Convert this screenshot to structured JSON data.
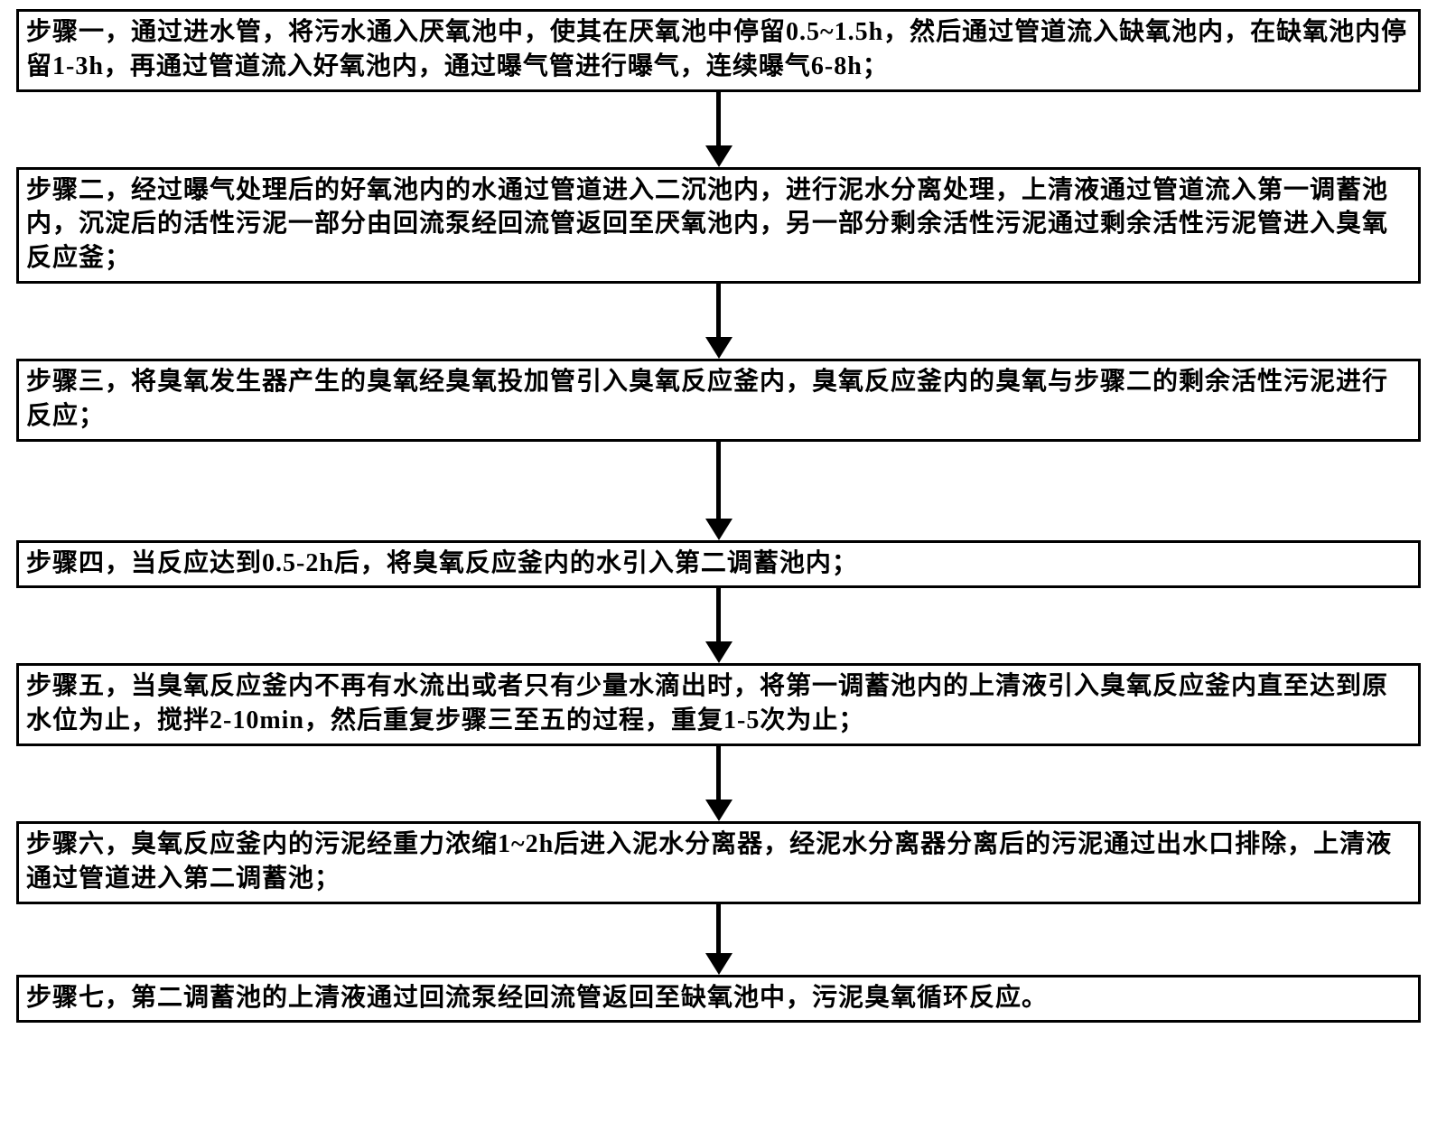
{
  "flowchart": {
    "type": "flowchart",
    "direction": "top-to-bottom",
    "background_color": "#ffffff",
    "box_border_color": "#000000",
    "box_border_width": 3,
    "text_color": "#000000",
    "font_family": "SimSun",
    "font_size_pt": 21,
    "font_weight": "bold",
    "arrow_color": "#000000",
    "arrow_shaft_width": 5,
    "arrow_head_width": 30,
    "arrow_head_height": 24,
    "steps": [
      {
        "id": "step1",
        "text": "步骤一，通过进水管，将污水通入厌氧池中，使其在厌氧池中停留0.5~1.5h，然后通过管道流入缺氧池内，在缺氧池内停留1-3h，再通过管道流入好氧池内，通过曝气管进行曝气，连续曝气6-8h；",
        "arrow_shaft_height": 60
      },
      {
        "id": "step2",
        "text": "步骤二，经过曝气处理后的好氧池内的水通过管道进入二沉池内，进行泥水分离处理，上清液通过管道流入第一调蓄池内，沉淀后的活性污泥一部分由回流泵经回流管返回至厌氧池内，另一部分剩余活性污泥通过剩余活性污泥管进入臭氧反应釜；",
        "arrow_shaft_height": 60
      },
      {
        "id": "step3",
        "text": "步骤三，将臭氧发生器产生的臭氧经臭氧投加管引入臭氧反应釜内，臭氧反应釜内的臭氧与步骤二的剩余活性污泥进行反应；",
        "arrow_shaft_height": 86
      },
      {
        "id": "step4",
        "text": "步骤四，当反应达到0.5-2h后，将臭氧反应釜内的水引入第二调蓄池内；",
        "arrow_shaft_height": 60
      },
      {
        "id": "step5",
        "text": "步骤五，当臭氧反应釜内不再有水流出或者只有少量水滴出时，将第一调蓄池内的上清液引入臭氧反应釜内直至达到原水位为止，搅拌2-10min，然后重复步骤三至五的过程，重复1-5次为止；",
        "arrow_shaft_height": 60
      },
      {
        "id": "step6",
        "text": "步骤六，臭氧反应釜内的污泥经重力浓缩1~2h后进入泥水分离器，经泥水分离器分离后的污泥通过出水口排除，上清液通过管道进入第二调蓄池；",
        "arrow_shaft_height": 55
      },
      {
        "id": "step7",
        "text": "步骤七，第二调蓄池的上清液通过回流泵经回流管返回至缺氧池中，污泥臭氧循环反应。",
        "arrow_shaft_height": 0
      }
    ]
  }
}
